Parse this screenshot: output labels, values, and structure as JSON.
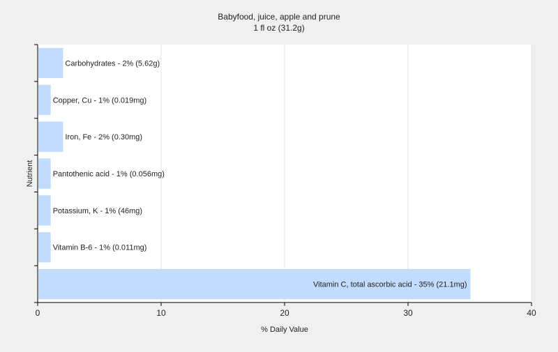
{
  "chart_data": {
    "type": "bar",
    "orientation": "horizontal",
    "title": "Babyfood, juice, apple and prune",
    "subtitle": "1 fl oz (31.2g)",
    "xlabel": "% Daily Value",
    "ylabel": "Nutrient",
    "xlim": [
      0,
      40
    ],
    "x_ticks": [
      0,
      10,
      20,
      30,
      40
    ],
    "grid": true,
    "legend": "none",
    "colors": {
      "bar": "#c2dcfd",
      "background": "#f0f0f0",
      "plot_background": "#ffffff",
      "grid": "#e4e4e4",
      "axis": "#000000",
      "text": "#222222"
    },
    "categories": [
      "Carbohydrates",
      "Copper, Cu",
      "Iron, Fe",
      "Pantothenic acid",
      "Potassium, K",
      "Vitamin B-6",
      "Vitamin C, total ascorbic acid"
    ],
    "values": [
      2,
      1,
      2,
      1,
      1,
      1,
      35
    ],
    "labels": [
      "Carbohydrates - 2% (5.62g)",
      "Copper, Cu - 1% (0.019mg)",
      "Iron, Fe - 2% (0.30mg)",
      "Pantothenic acid - 1% (0.056mg)",
      "Potassium, K - 1% (46mg)",
      "Vitamin B-6 - 1% (0.011mg)",
      "Vitamin C, total ascorbic acid - 35% (21.1mg)"
    ]
  }
}
